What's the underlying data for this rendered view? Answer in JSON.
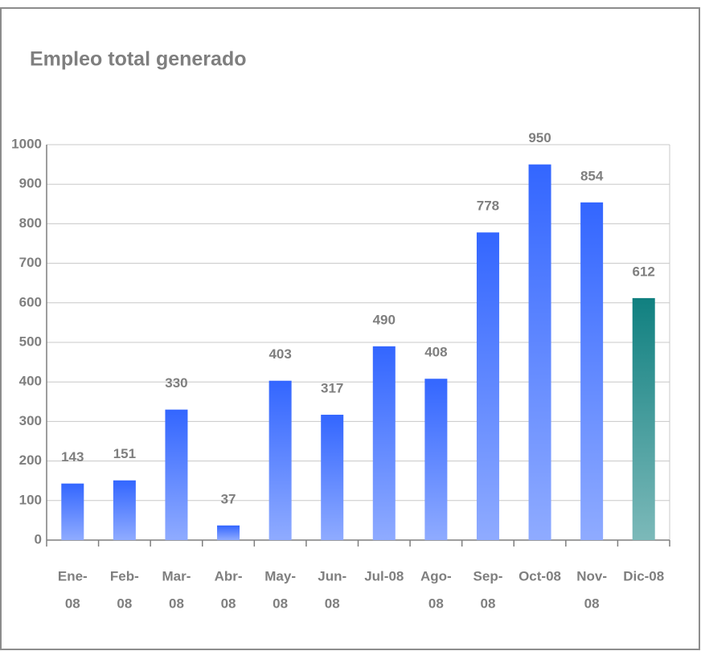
{
  "chart_data": {
    "type": "bar",
    "title": "Empleo total generado",
    "categories": [
      [
        "Ene-",
        "08"
      ],
      [
        "Feb-",
        "08"
      ],
      [
        "Mar-",
        "08"
      ],
      [
        "Abr-",
        "08"
      ],
      [
        "May-",
        "08"
      ],
      [
        "Jun-",
        "08"
      ],
      [
        "Jul-08"
      ],
      [
        "Ago-",
        "08"
      ],
      [
        "Sep-",
        "08"
      ],
      [
        "Oct-08"
      ],
      [
        "Nov-",
        "08"
      ],
      [
        "Dic-08"
      ]
    ],
    "values": [
      143,
      151,
      330,
      37,
      403,
      317,
      490,
      408,
      778,
      950,
      854,
      612
    ],
    "colors": [
      "#3366ff",
      "#3366ff",
      "#3366ff",
      "#3366ff",
      "#3366ff",
      "#3366ff",
      "#3366ff",
      "#3366ff",
      "#3366ff",
      "#3366ff",
      "#3366ff",
      "#108080"
    ],
    "ylim": [
      0,
      1000
    ],
    "yticks": [
      0,
      100,
      200,
      300,
      400,
      500,
      600,
      700,
      800,
      900,
      1000
    ],
    "grid": true
  }
}
